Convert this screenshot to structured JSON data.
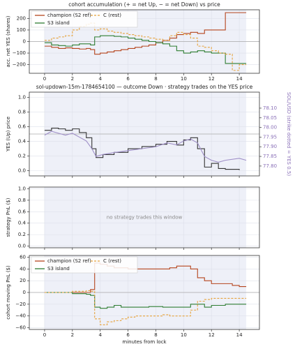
{
  "chart_data": [
    {
      "type": "line",
      "title": "cohort accumulation (+ = net Up, − = net Down) vs price",
      "ylabel": "acc. net YES (shares)",
      "x": [
        0,
        0.5,
        1,
        1.5,
        2,
        2.5,
        3,
        3.3,
        3.6,
        4,
        4.5,
        5,
        5.5,
        6,
        6.5,
        7,
        7.5,
        8,
        8.5,
        9,
        9.5,
        10,
        10.5,
        11,
        11.5,
        12,
        12.5,
        13,
        13.5,
        14,
        14.5
      ],
      "series": [
        {
          "name": "champion (S2 ref)",
          "color": "#b5441c",
          "dash": false,
          "step": true,
          "values": [
            -40,
            -50,
            -60,
            -55,
            -60,
            -65,
            -60,
            -70,
            -110,
            -100,
            -90,
            -80,
            -70,
            -60,
            -50,
            -40,
            -30,
            -10,
            10,
            30,
            60,
            70,
            80,
            70,
            100,
            100,
            100,
            250,
            250,
            250,
            250
          ]
        },
        {
          "name": "S3 island",
          "color": "#2e7d32",
          "dash": false,
          "step": true,
          "values": [
            -10,
            -30,
            -35,
            -40,
            -30,
            -20,
            -20,
            -30,
            40,
            50,
            50,
            45,
            40,
            30,
            20,
            10,
            0,
            -10,
            -20,
            -40,
            -80,
            -100,
            -90,
            -80,
            -90,
            -100,
            -100,
            -190,
            -190,
            -190,
            -190
          ]
        },
        {
          "name": "C (rest)",
          "color": "#e6a23c",
          "dash": true,
          "step": true,
          "values": [
            10,
            30,
            40,
            50,
            100,
            130,
            150,
            160,
            100,
            110,
            90,
            80,
            70,
            60,
            50,
            40,
            30,
            20,
            10,
            50,
            80,
            60,
            30,
            -40,
            -50,
            -80,
            -100,
            -110,
            -250,
            -200,
            -200
          ]
        }
      ],
      "xlim": [
        -1.1,
        15.45
      ],
      "xticks": [
        0,
        2,
        4,
        6,
        8,
        10,
        12,
        14
      ],
      "xtick_labels": true,
      "ylim": [
        -275,
        275
      ],
      "yticks": [
        {
          "value": -200,
          "label": "−200"
        },
        {
          "value": -100,
          "label": "−100"
        },
        0,
        100,
        200
      ],
      "hline": 0,
      "shade_x": [
        0,
        14.5
      ],
      "grid": true,
      "legend": "upper left"
    },
    {
      "type": "line",
      "title": "sol-updown-15m-1784654100 — outcome Down · strategy trades on the YES price",
      "ylabel": "YES (Up) price",
      "y2label": "SOL/USD (strike dotted = YES 0.5)",
      "x": [
        0,
        0.5,
        1,
        1.5,
        2,
        2.5,
        3,
        3.4,
        3.7,
        4.2,
        5,
        6,
        7,
        8,
        8.8,
        9.5,
        10,
        10.5,
        11,
        11.5,
        12,
        12.5,
        13,
        14,
        14.5
      ],
      "series": [
        {
          "color": "#333333",
          "dash": false,
          "step": true,
          "values": [
            0.55,
            0.58,
            0.57,
            0.55,
            0.57,
            0.52,
            0.45,
            0.3,
            0.18,
            0.22,
            0.25,
            0.3,
            0.33,
            0.36,
            0.4,
            0.35,
            0.42,
            0.45,
            0.3,
            0.05,
            0.1,
            0.03,
            0.02,
            0.01,
            null
          ]
        },
        {
          "color": "#9f8fc8",
          "dash": false,
          "step": false,
          "axis": "y2",
          "values": [
            77.96,
            77.98,
            77.97,
            77.96,
            77.97,
            77.95,
            77.93,
            77.89,
            77.85,
            77.86,
            77.87,
            77.88,
            77.89,
            77.9,
            77.92,
            77.91,
            77.93,
            77.94,
            77.92,
            77.85,
            77.83,
            77.82,
            77.83,
            77.84,
            77.83
          ]
        }
      ],
      "xlim": [
        -1.1,
        15.45
      ],
      "xticks": [
        0,
        2,
        4,
        6,
        8,
        10,
        12,
        14
      ],
      "xtick_labels": false,
      "ylim": [
        -0.07,
        1.07
      ],
      "yticks": [
        {
          "value": 0,
          "label": "0.0"
        },
        {
          "value": 0.2,
          "label": "0.2"
        },
        {
          "value": 0.4,
          "label": "0.4"
        },
        {
          "value": 0.6,
          "label": "0.6"
        },
        {
          "value": 0.8,
          "label": "0.8"
        },
        {
          "value": 1,
          "label": "1.0"
        }
      ],
      "y2lim": [
        77.749,
        78.183
      ],
      "y2ticks": [
        {
          "value": 77.8,
          "label": "77.80"
        },
        {
          "value": 77.85,
          "label": "77.85"
        },
        {
          "value": 77.9,
          "label": "77.90"
        },
        {
          "value": 77.95,
          "label": "77.95"
        },
        {
          "value": 78.0,
          "label": "78.00"
        },
        {
          "value": 78.05,
          "label": "78.05"
        },
        {
          "value": 78.1,
          "label": "78.10"
        }
      ],
      "y2color": "#8a70b8",
      "hline": 0.5,
      "shade_x": [
        0,
        14.5
      ],
      "grid": true
    },
    {
      "type": "line",
      "ylabel": "strategy PnL ($)",
      "note": "no strategy trades this window",
      "x": [],
      "series": [],
      "xlim": [
        -1.1,
        15.45
      ],
      "xticks": [
        0,
        2,
        4,
        6,
        8,
        10,
        12,
        14
      ],
      "xtick_labels": false,
      "ylim": [
        -0.03,
        1.03
      ],
      "yticks": [
        {
          "value": 0,
          "label": "0.0"
        },
        {
          "value": 0.2,
          "label": "0.2"
        },
        {
          "value": 0.4,
          "label": "0.4"
        },
        {
          "value": 0.6,
          "label": "0.6"
        },
        {
          "value": 0.8,
          "label": "0.8"
        },
        {
          "value": 1,
          "label": "1.0"
        }
      ],
      "shade_x": [
        0,
        14.5
      ],
      "grid": true
    },
    {
      "type": "line",
      "ylabel": "cohort moving PnL ($)",
      "xlabel": "minutes from lock",
      "x": [
        0,
        0.5,
        1,
        1.5,
        2,
        2.5,
        3,
        3.3,
        3.6,
        4,
        4.5,
        5,
        5.5,
        6,
        6.5,
        7,
        7.5,
        8,
        8.5,
        9,
        9.5,
        10,
        10.5,
        11,
        11.5,
        12,
        12.5,
        13,
        13.5,
        14,
        14.5
      ],
      "series": [
        {
          "name": "champion (S2 ref)",
          "color": "#b5441c",
          "dash": false,
          "step": true,
          "values": [
            0,
            0,
            0,
            0,
            0,
            0,
            0,
            5,
            50,
            48,
            45,
            42,
            42,
            40,
            40,
            40,
            40,
            40,
            40,
            42,
            45,
            45,
            40,
            25,
            20,
            15,
            15,
            15,
            12,
            10,
            10
          ]
        },
        {
          "name": "S3 island",
          "color": "#2e7d32",
          "dash": false,
          "step": true,
          "values": [
            0,
            0,
            0,
            0,
            -2,
            -2,
            -3,
            -5,
            -25,
            -27,
            -25,
            -22,
            -25,
            -25,
            -25,
            -25,
            -24,
            -24,
            -25,
            -25,
            -25,
            -25,
            -20,
            -20,
            -25,
            -22,
            -22,
            -20,
            -20,
            -20,
            -20
          ]
        },
        {
          "name": "C (rest)",
          "color": "#e6a23c",
          "dash": true,
          "step": true,
          "values": [
            0,
            0,
            0,
            0,
            2,
            2,
            3,
            2,
            -45,
            -55,
            -50,
            -48,
            -45,
            -42,
            -40,
            -40,
            -40,
            -40,
            -38,
            -40,
            -40,
            -40,
            -30,
            -15,
            -12,
            -10,
            -10,
            -10,
            -10,
            -10,
            -10
          ]
        }
      ],
      "xlim": [
        -1.1,
        15.45
      ],
      "xticks": [
        0,
        2,
        4,
        6,
        8,
        10,
        12,
        14
      ],
      "xtick_labels": true,
      "ylim": [
        -63,
        63
      ],
      "yticks": [
        {
          "value": -60,
          "label": "−60"
        },
        {
          "value": -40,
          "label": "−40"
        },
        {
          "value": -20,
          "label": "−20"
        },
        0,
        20,
        40,
        60
      ],
      "hline": 0,
      "shade_x": [
        0,
        14.5
      ],
      "grid": true,
      "legend": "upper left"
    }
  ]
}
